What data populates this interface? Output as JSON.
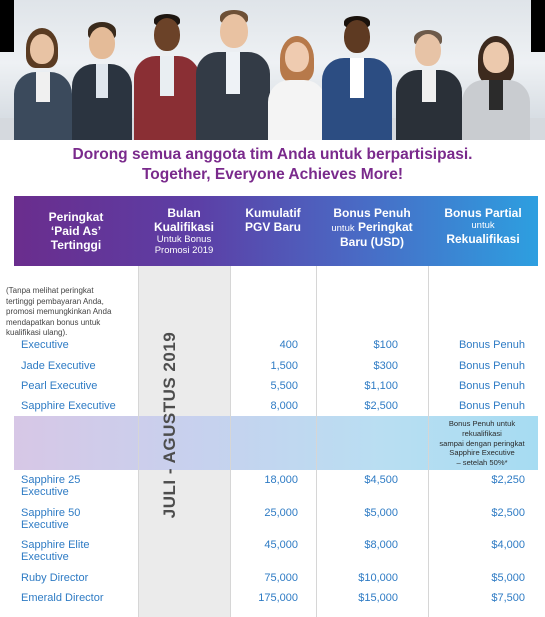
{
  "headline": {
    "line1": "Dorong semua anggota tim Anda untuk berpartisipasi.",
    "line2": "Together, Everyone Achieves More!"
  },
  "table": {
    "headers": {
      "rank": {
        "l1": "Peringkat",
        "l2": "‘Paid As’",
        "l3": "Tertinggi"
      },
      "month": {
        "l1": "Bulan",
        "l2": "Kualifikasi",
        "l3": "Untuk Bonus",
        "l4": "Promosi 2019"
      },
      "pgv": {
        "l1": "Kumulatif",
        "l2": "PGV Baru"
      },
      "full": {
        "l1": "Bonus Penuh",
        "l2a": "untuk",
        "l2b": "Peringkat",
        "l3": "Baru (USD)"
      },
      "partial": {
        "l1": "Bonus Partial",
        "l2": "untuk",
        "l3": "Rekualifikasi"
      }
    },
    "note": "(Tanpa melihat peringkat tertinggi pembayaran Anda, promosi memungkinkan Anda mendapatkan bonus untuk kualifikasi ulang).",
    "period": "JULI - AGUSTUS 2019",
    "band_note": {
      "l1": "Bonus Penuh untuk rekualifikasi",
      "l2": "sampai dengan peringkat",
      "l3": "Sapphire Executive",
      "l4": "– setelah 50%*"
    },
    "rows": [
      {
        "rank": "Executive",
        "pgv": "400",
        "full": "$100",
        "partial": "Bonus Penuh"
      },
      {
        "rank": "Jade Executive",
        "pgv": "1,500",
        "full": "$300",
        "partial": "Bonus Penuh"
      },
      {
        "rank": "Pearl Executive",
        "pgv": "5,500",
        "full": "$1,100",
        "partial": "Bonus Penuh"
      },
      {
        "rank": "Sapphire Executive",
        "pgv": "8,000",
        "full": "$2,500",
        "partial": "Bonus Penuh"
      },
      {
        "rank_l1": "Sapphire 25",
        "rank_l2": "Executive",
        "pgv": "18,000",
        "full": "$4,500",
        "partial": "$2,250"
      },
      {
        "rank_l1": "Sapphire 50",
        "rank_l2": "Executive",
        "pgv": "25,000",
        "full": "$5,000",
        "partial": "$2,500"
      },
      {
        "rank_l1": "Sapphire Elite",
        "rank_l2": "Executive",
        "pgv": "45,000",
        "full": "$8,000",
        "partial": "$4,000"
      },
      {
        "rank": "Ruby Director",
        "pgv": "75,000",
        "full": "$10,000",
        "partial": "$5,000"
      },
      {
        "rank": "Emerald Director",
        "pgv": "175,000",
        "full": "$15,000",
        "partial": "$7,500"
      }
    ]
  }
}
